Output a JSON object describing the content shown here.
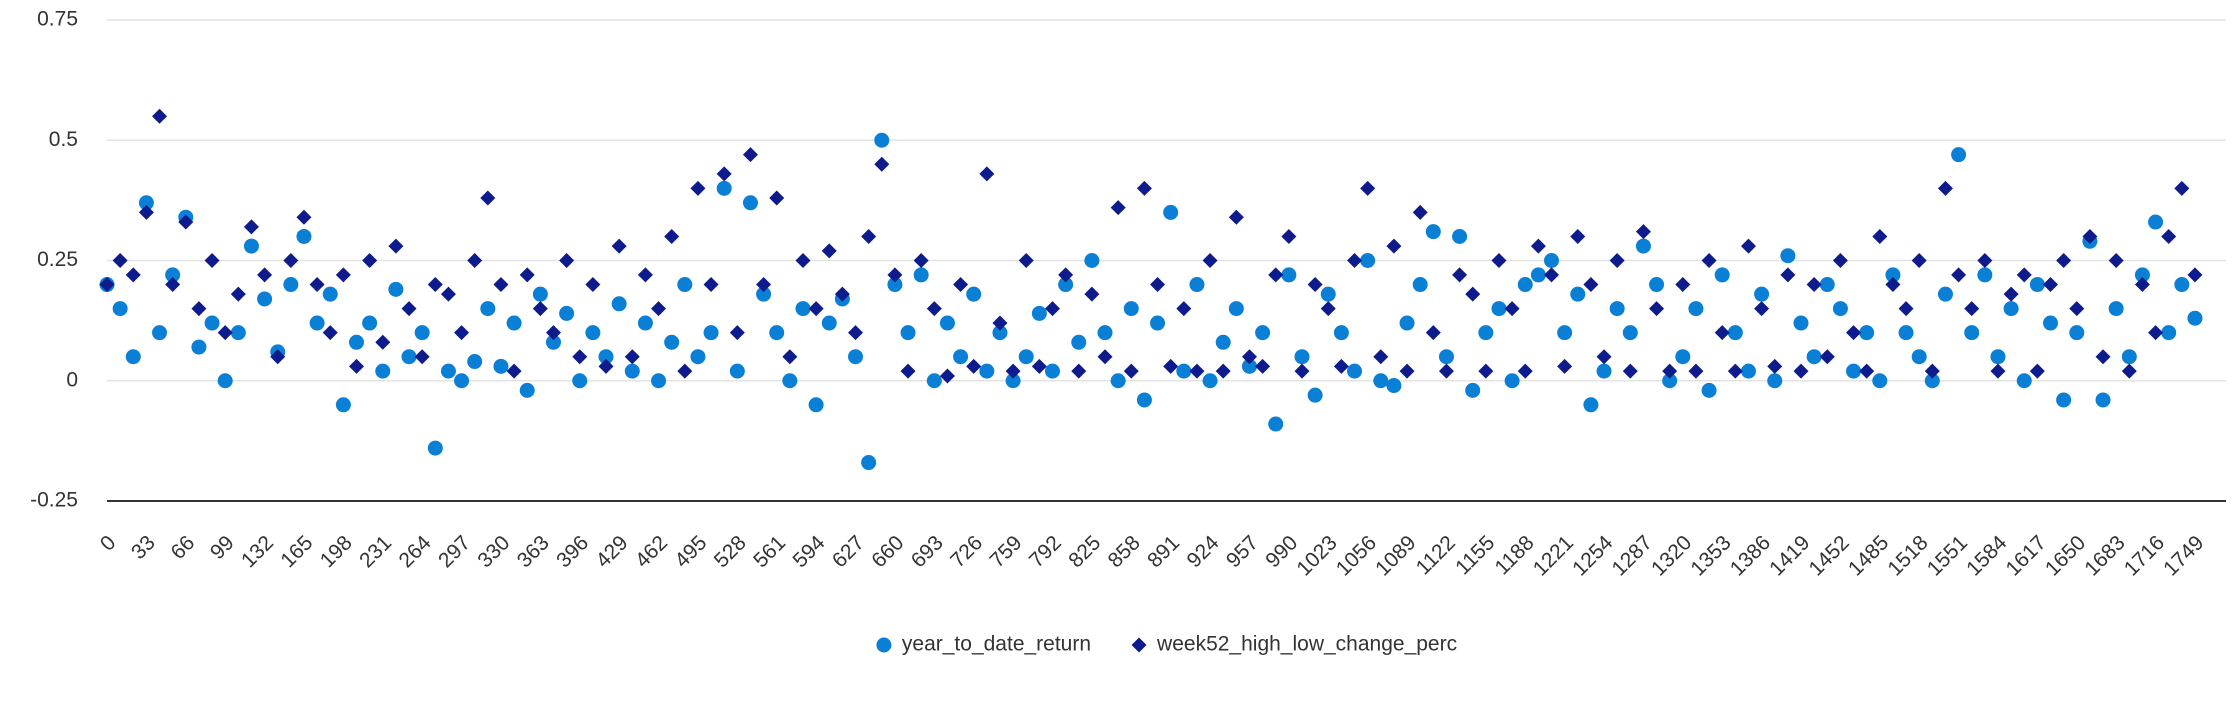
{
  "chart_data": {
    "type": "scatter",
    "x": [
      0,
      11,
      22,
      33,
      44,
      55,
      66,
      77,
      88,
      99,
      110,
      121,
      132,
      143,
      154,
      165,
      176,
      187,
      198,
      209,
      220,
      231,
      242,
      253,
      264,
      275,
      286,
      297,
      308,
      319,
      330,
      341,
      352,
      363,
      374,
      385,
      396,
      407,
      418,
      429,
      440,
      451,
      462,
      473,
      484,
      495,
      506,
      517,
      528,
      539,
      550,
      561,
      572,
      583,
      594,
      605,
      616,
      627,
      638,
      649,
      660,
      671,
      682,
      693,
      704,
      715,
      726,
      737,
      748,
      759,
      770,
      781,
      792,
      803,
      814,
      825,
      836,
      847,
      858,
      869,
      880,
      891,
      902,
      913,
      924,
      935,
      946,
      957,
      968,
      979,
      990,
      1001,
      1012,
      1023,
      1034,
      1045,
      1056,
      1067,
      1078,
      1089,
      1100,
      1111,
      1122,
      1133,
      1144,
      1155,
      1166,
      1177,
      1188,
      1199,
      1210,
      1221,
      1232,
      1243,
      1254,
      1265,
      1276,
      1287,
      1298,
      1309,
      1320,
      1331,
      1342,
      1353,
      1364,
      1375,
      1386,
      1397,
      1408,
      1419,
      1430,
      1441,
      1452,
      1463,
      1474,
      1485,
      1496,
      1507,
      1518,
      1529,
      1540,
      1551,
      1562,
      1573,
      1584,
      1595,
      1606,
      1617,
      1628,
      1639,
      1650,
      1661,
      1672,
      1683,
      1694,
      1705,
      1716,
      1727,
      1738,
      1749
    ],
    "series": [
      {
        "name": "year_to_date_return",
        "color": "#0a7fd6",
        "marker": "circle",
        "values": [
          0.2,
          0.15,
          0.05,
          0.37,
          0.1,
          0.22,
          0.34,
          0.07,
          0.12,
          0.0,
          0.1,
          0.28,
          0.17,
          0.06,
          0.2,
          0.3,
          0.12,
          0.18,
          -0.05,
          0.08,
          0.12,
          0.02,
          0.19,
          0.05,
          0.1,
          -0.14,
          0.02,
          0.0,
          0.04,
          0.15,
          0.03,
          0.12,
          -0.02,
          0.18,
          0.08,
          0.14,
          0.0,
          0.1,
          0.05,
          0.16,
          0.02,
          0.12,
          0.0,
          0.08,
          0.2,
          0.05,
          0.1,
          0.4,
          0.02,
          0.37,
          0.18,
          0.1,
          0.0,
          0.15,
          -0.05,
          0.12,
          0.17,
          0.05,
          -0.17,
          0.5,
          0.2,
          0.1,
          0.22,
          0.0,
          0.12,
          0.05,
          0.18,
          0.02,
          0.1,
          0.0,
          0.05,
          0.14,
          0.02,
          0.2,
          0.08,
          0.25,
          0.1,
          0.0,
          0.15,
          -0.04,
          0.12,
          0.35,
          0.02,
          0.2,
          0.0,
          0.08,
          0.15,
          0.03,
          0.1,
          -0.09,
          0.22,
          0.05,
          -0.03,
          0.18,
          0.1,
          0.02,
          0.25,
          0.0,
          -0.01,
          0.12,
          0.2,
          0.31,
          0.05,
          0.3,
          -0.02,
          0.1,
          0.15,
          0.0,
          0.2,
          0.22,
          0.25,
          0.1,
          0.18,
          -0.05,
          0.02,
          0.15,
          0.1,
          0.28,
          0.2,
          0.0,
          0.05,
          0.15,
          -0.02,
          0.22,
          0.1,
          0.02,
          0.18,
          0.0,
          0.26,
          0.12,
          0.05,
          0.2,
          0.15,
          0.02,
          0.1,
          0.0,
          0.22,
          0.1,
          0.05,
          0.0,
          0.18,
          0.47,
          0.1,
          0.22,
          0.05,
          0.15,
          0.0,
          0.2,
          0.12,
          -0.04,
          0.1,
          0.29,
          -0.04,
          0.15,
          0.05,
          0.22,
          0.33,
          0.1,
          0.2,
          0.13
        ]
      },
      {
        "name": "week52_high_low_change_perc",
        "color": "#0d1b8c",
        "marker": "diamond",
        "values": [
          0.2,
          0.25,
          0.22,
          0.35,
          0.55,
          0.2,
          0.33,
          0.15,
          0.25,
          0.1,
          0.18,
          0.32,
          0.22,
          0.05,
          0.25,
          0.34,
          0.2,
          0.1,
          0.22,
          0.03,
          0.25,
          0.08,
          0.28,
          0.15,
          0.05,
          0.2,
          0.18,
          0.1,
          0.25,
          0.38,
          0.2,
          0.02,
          0.22,
          0.15,
          0.1,
          0.25,
          0.05,
          0.2,
          0.03,
          0.28,
          0.05,
          0.22,
          0.15,
          0.3,
          0.02,
          0.4,
          0.2,
          0.43,
          0.1,
          0.47,
          0.2,
          0.38,
          0.05,
          0.25,
          0.15,
          0.27,
          0.18,
          0.1,
          0.3,
          0.45,
          0.22,
          0.02,
          0.25,
          0.15,
          0.01,
          0.2,
          0.03,
          0.43,
          0.12,
          0.02,
          0.25,
          0.03,
          0.15,
          0.22,
          0.02,
          0.18,
          0.05,
          0.36,
          0.02,
          0.4,
          0.2,
          0.03,
          0.15,
          0.02,
          0.25,
          0.02,
          0.34,
          0.05,
          0.03,
          0.22,
          0.3,
          0.02,
          0.2,
          0.15,
          0.03,
          0.25,
          0.4,
          0.05,
          0.28,
          0.02,
          0.35,
          0.1,
          0.02,
          0.22,
          0.18,
          0.02,
          0.25,
          0.15,
          0.02,
          0.28,
          0.22,
          0.03,
          0.3,
          0.2,
          0.05,
          0.25,
          0.02,
          0.31,
          0.15,
          0.02,
          0.2,
          0.02,
          0.25,
          0.1,
          0.02,
          0.28,
          0.15,
          0.03,
          0.22,
          0.02,
          0.2,
          0.05,
          0.25,
          0.1,
          0.02,
          0.3,
          0.2,
          0.15,
          0.25,
          0.02,
          0.4,
          0.22,
          0.15,
          0.25,
          0.02,
          0.18,
          0.22,
          0.02,
          0.2,
          0.25,
          0.15,
          0.3,
          0.05,
          0.25,
          0.02,
          0.2,
          0.1,
          0.3,
          0.4,
          0.22
        ]
      }
    ],
    "xlim": [
      0,
      1775
    ],
    "xticks": [
      0,
      33,
      66,
      99,
      132,
      165,
      198,
      231,
      264,
      297,
      330,
      363,
      396,
      429,
      462,
      495,
      528,
      561,
      594,
      627,
      660,
      693,
      726,
      759,
      792,
      825,
      858,
      891,
      924,
      957,
      990,
      1023,
      1056,
      1089,
      1122,
      1155,
      1188,
      1221,
      1254,
      1287,
      1320,
      1353,
      1386,
      1419,
      1452,
      1485,
      1518,
      1551,
      1584,
      1617,
      1650,
      1683,
      1716,
      1749
    ],
    "ylim": [
      -0.25,
      0.75
    ],
    "yticks": [
      -0.25,
      0,
      0.25,
      0.5,
      0.75
    ],
    "grid": true,
    "legend": "bottom"
  }
}
